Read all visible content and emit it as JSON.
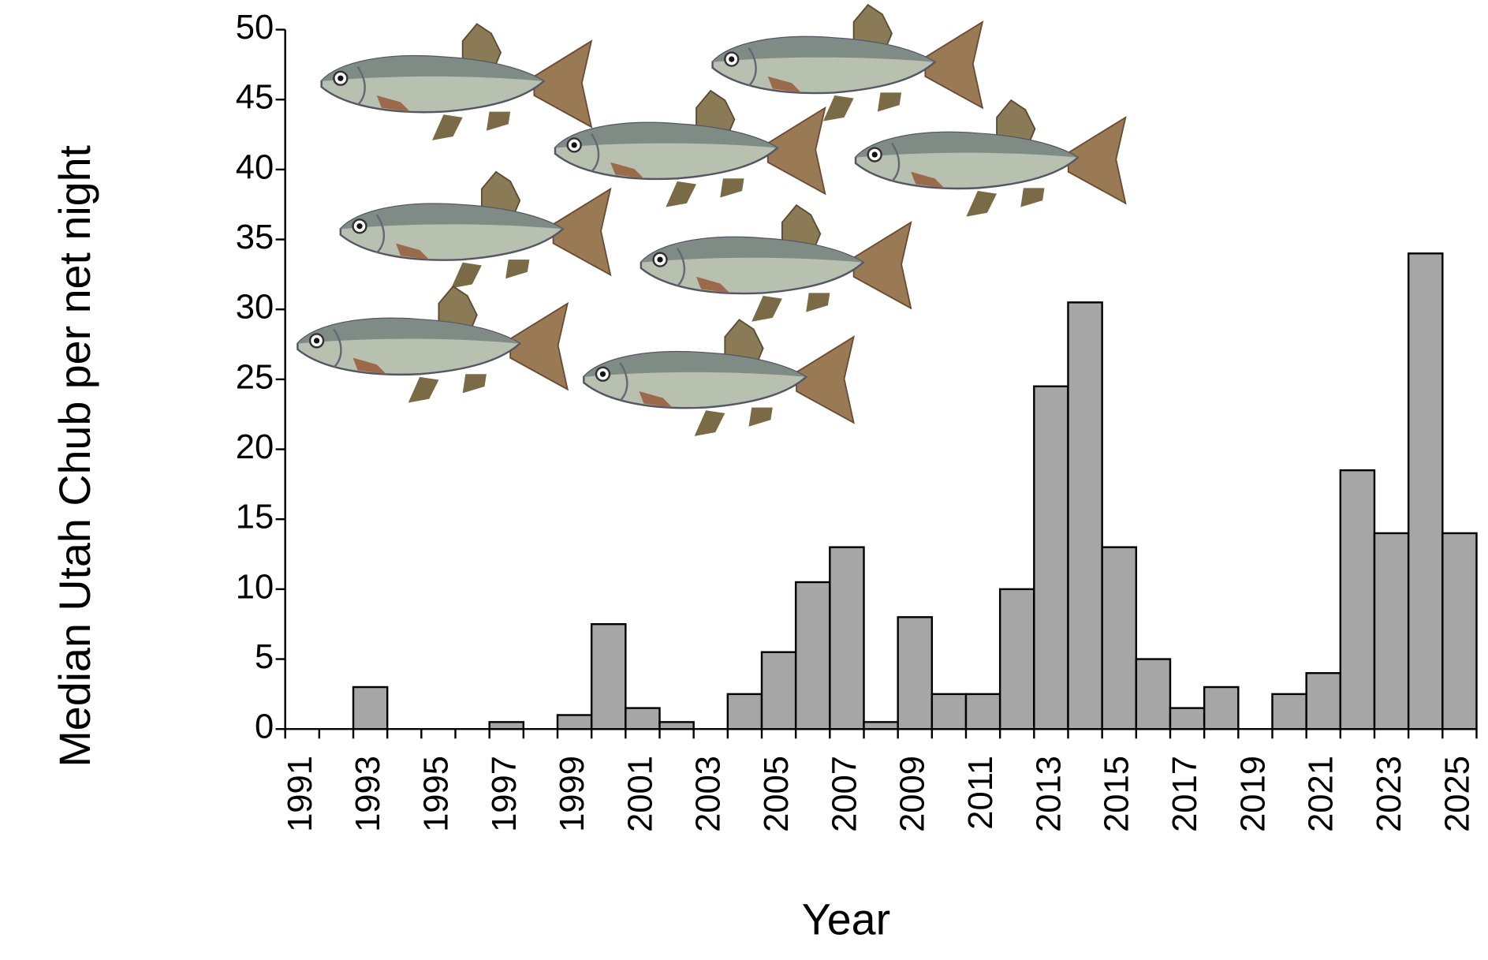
{
  "chart_data": {
    "type": "bar",
    "x_label": "Year",
    "y_label": "Median Utah Chub per net night",
    "categories": [
      "1991",
      null,
      "1993",
      null,
      "1995",
      null,
      "1997",
      null,
      "1999",
      null,
      "2001",
      null,
      "2003",
      null,
      "2005",
      null,
      "2007",
      null,
      "2009",
      null,
      "2011",
      null,
      "2013",
      null,
      "2015",
      null,
      "2017",
      null,
      "2019",
      null,
      "2021",
      null,
      "2023",
      null,
      "2025"
    ],
    "values": [
      0,
      0,
      3,
      0,
      0,
      0,
      0.5,
      0,
      1,
      7.5,
      1.5,
      0.5,
      0,
      2.5,
      5.5,
      10.5,
      13,
      0.5,
      8,
      2.5,
      2.5,
      10,
      24.5,
      30.5,
      13,
      5,
      1.5,
      3,
      0,
      2.5,
      4,
      18.5,
      14,
      34,
      14
    ],
    "color": "#a6a6a6",
    "ylim": [
      0,
      50
    ],
    "yticks": [
      0,
      5,
      10,
      15,
      20,
      25,
      30,
      35,
      40,
      45,
      50
    ]
  }
}
